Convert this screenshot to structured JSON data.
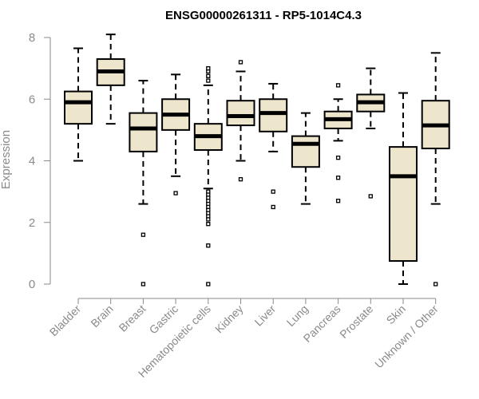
{
  "chart_data": {
    "type": "box",
    "title": "ENSG00000261311 - RP5-1014C4.3",
    "xlabel": "",
    "ylabel": "Expression",
    "ylim": [
      0,
      8
    ],
    "yticks": [
      0,
      2,
      4,
      6,
      8
    ],
    "grid": false,
    "colors": {
      "box_fill": "#ede6cc",
      "box_stroke": "#000000",
      "median": "#000000",
      "axis_text": "#8a8a8a"
    },
    "categories": [
      "Bladder",
      "Brain",
      "Breast",
      "Gastric",
      "Hematopoietic cells",
      "Kidney",
      "Liver",
      "Lung",
      "Pancreas",
      "Prostate",
      "Skin",
      "Unknown / Other"
    ],
    "boxes": [
      {
        "category": "Bladder",
        "whisker_low": 4.0,
        "q1": 5.2,
        "median": 5.9,
        "q3": 6.25,
        "whisker_high": 7.65,
        "outliers": []
      },
      {
        "category": "Brain",
        "whisker_low": 5.2,
        "q1": 6.45,
        "median": 6.9,
        "q3": 7.3,
        "whisker_high": 8.1,
        "outliers": []
      },
      {
        "category": "Breast",
        "whisker_low": 2.6,
        "q1": 4.3,
        "median": 5.05,
        "q3": 5.55,
        "whisker_high": 6.6,
        "outliers": [
          1.6,
          0.0
        ]
      },
      {
        "category": "Gastric",
        "whisker_low": 3.5,
        "q1": 5.0,
        "median": 5.5,
        "q3": 6.0,
        "whisker_high": 6.8,
        "outliers": [
          2.95
        ]
      },
      {
        "category": "Hematopoietic cells",
        "whisker_low": 3.1,
        "q1": 4.35,
        "median": 4.8,
        "q3": 5.2,
        "whisker_high": 6.45,
        "outliers": [
          6.6,
          6.75,
          6.9,
          7.0,
          3.0,
          2.9,
          2.8,
          2.7,
          2.6,
          2.5,
          2.4,
          2.3,
          2.2,
          2.1,
          1.95,
          1.25,
          0.0
        ]
      },
      {
        "category": "Kidney",
        "whisker_low": 4.0,
        "q1": 5.15,
        "median": 5.45,
        "q3": 5.95,
        "whisker_high": 6.9,
        "outliers": [
          7.2,
          3.4
        ]
      },
      {
        "category": "Liver",
        "whisker_low": 4.3,
        "q1": 4.95,
        "median": 5.55,
        "q3": 6.0,
        "whisker_high": 6.5,
        "outliers": [
          3.0,
          2.5
        ]
      },
      {
        "category": "Lung",
        "whisker_low": 2.6,
        "q1": 3.8,
        "median": 4.55,
        "q3": 4.8,
        "whisker_high": 5.55,
        "outliers": []
      },
      {
        "category": "Pancreas",
        "whisker_low": 4.65,
        "q1": 5.05,
        "median": 5.35,
        "q3": 5.6,
        "whisker_high": 6.0,
        "outliers": [
          6.45,
          4.1,
          3.45,
          2.7
        ]
      },
      {
        "category": "Prostate",
        "whisker_low": 5.05,
        "q1": 5.6,
        "median": 5.9,
        "q3": 6.15,
        "whisker_high": 7.0,
        "outliers": [
          2.85
        ]
      },
      {
        "category": "Skin",
        "whisker_low": 0.0,
        "q1": 0.75,
        "median": 3.5,
        "q3": 4.45,
        "whisker_high": 6.2,
        "outliers": []
      },
      {
        "category": "Unknown / Other",
        "whisker_low": 2.6,
        "q1": 4.4,
        "median": 5.15,
        "q3": 5.95,
        "whisker_high": 7.5,
        "outliers": [
          0.0
        ]
      }
    ]
  }
}
